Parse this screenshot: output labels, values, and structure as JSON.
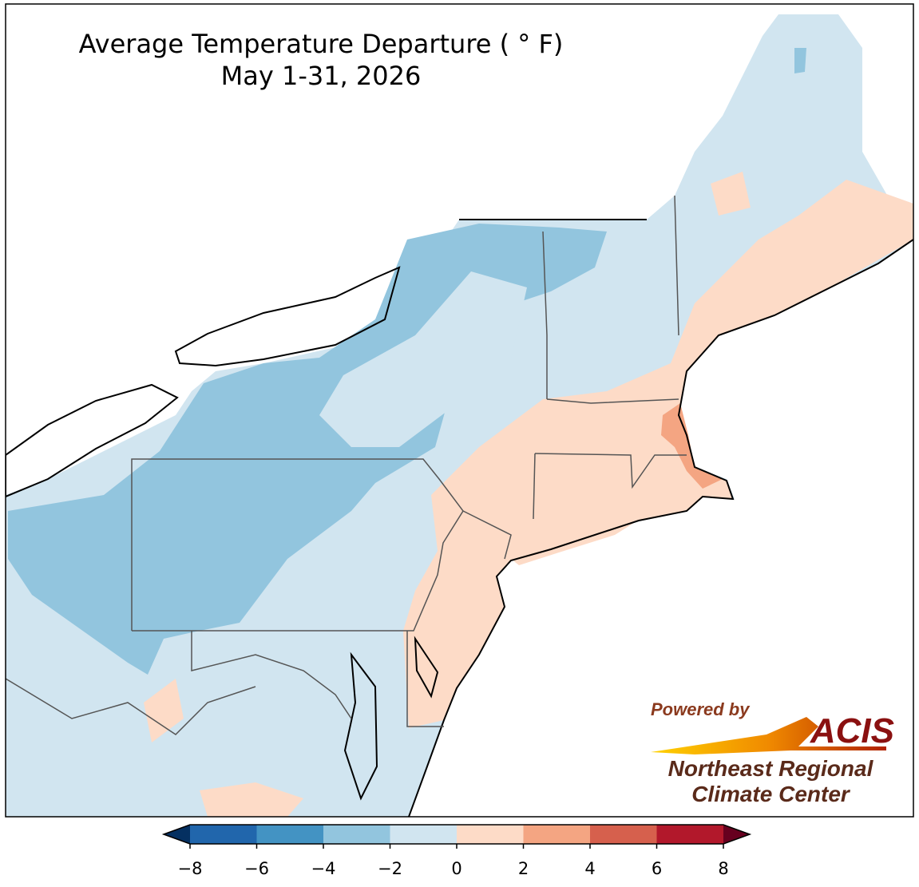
{
  "map": {
    "title": "Average Temperature Departure ( ° F)",
    "subtitle": "May 1-31, 2026",
    "colorbar": {
      "lim": [
        -8,
        8
      ],
      "ticks": [
        {
          "value": -8,
          "label": "−8"
        },
        {
          "value": -6,
          "label": "−6"
        },
        {
          "value": -4,
          "label": "−4"
        },
        {
          "value": -2,
          "label": "−2"
        },
        0,
        2,
        4,
        6,
        8
      ],
      "colors": [
        "#2166ac",
        "#4393c3",
        "#92c5de",
        "#d1e5f0",
        "#fddbc7",
        "#f4a582",
        "#d6604d",
        "#b2182b"
      ],
      "under_color": "#053061",
      "over_color": "#67001f"
    }
  },
  "logo": {
    "powered": "Powered by",
    "name": "ACIS",
    "line1": "Northeast Regional",
    "line2": "Climate Center"
  }
}
